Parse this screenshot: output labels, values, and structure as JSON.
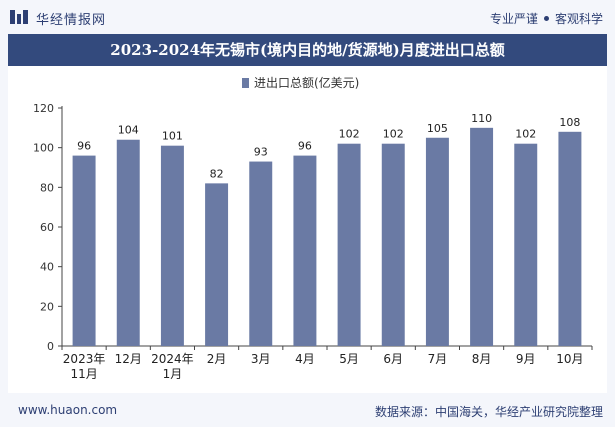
{
  "header": {
    "brand": "华经情报网",
    "slogan_left": "专业严谨",
    "slogan_right": "客观科学"
  },
  "chart_title": "2023-2024年无锡市(境内目的地/货源地)月度进出口总额",
  "footer": {
    "site": "www.huaon.com",
    "source": "数据来源：中国海关，华经产业研究院整理"
  },
  "colors": {
    "bar": "#6a7aa4",
    "title_bg": "#334a7d",
    "accent_text": "#2d3f73"
  },
  "chart_data": {
    "type": "bar",
    "categories": [
      "2023年\n11月",
      "12月",
      "2024年\n1月",
      "2月",
      "3月",
      "4月",
      "5月",
      "6月",
      "7月",
      "8月",
      "9月",
      "10月"
    ],
    "series": [
      {
        "name": "进出口总额(亿美元)",
        "values": [
          96,
          104,
          101,
          82,
          93,
          96,
          102,
          102,
          105,
          110,
          102,
          108
        ]
      }
    ],
    "ylim": [
      0,
      120
    ],
    "yticks": [
      0,
      20,
      40,
      60,
      80,
      100,
      120
    ],
    "legend_position": "top-center",
    "grid": false,
    "xlabel": "",
    "ylabel": ""
  }
}
